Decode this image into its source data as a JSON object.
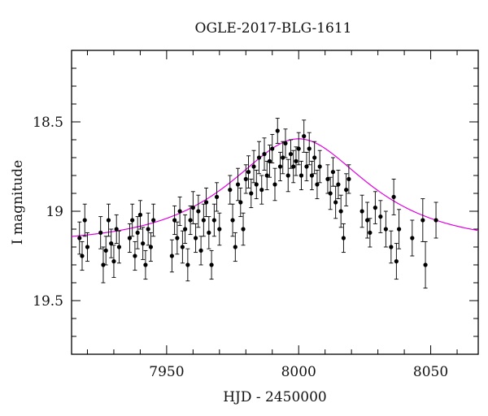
{
  "chart_data": {
    "type": "scatter",
    "title": "OGLE-2017-BLG-1611",
    "xlabel": "HJD - 2450000",
    "ylabel": "I magnitude",
    "xlim": [
      7914,
      8068
    ],
    "ylim": [
      18.1,
      19.8
    ],
    "y_inverted": true,
    "grid": false,
    "x_ticks": [
      7950,
      8000,
      8050
    ],
    "y_ticks": [
      18.5,
      19,
      19.5
    ],
    "x_tick_labels": [
      "7950",
      "8000",
      "8050"
    ],
    "y_tick_labels": [
      "18.5",
      "19",
      "19.5"
    ],
    "colors": {
      "data": "#000000",
      "model": "#e000e0"
    },
    "series": [
      {
        "type": "scatter_errorbars",
        "color": "#000000",
        "points": [
          [
            7917,
            19.15,
            0.09
          ],
          [
            7918,
            19.25,
            0.08
          ],
          [
            7919,
            19.05,
            0.09
          ],
          [
            7920,
            19.2,
            0.08
          ],
          [
            7925,
            19.12,
            0.09
          ],
          [
            7926,
            19.3,
            0.1
          ],
          [
            7927,
            19.22,
            0.08
          ],
          [
            7928,
            19.05,
            0.09
          ],
          [
            7929,
            19.18,
            0.08
          ],
          [
            7930,
            19.28,
            0.09
          ],
          [
            7931,
            19.1,
            0.08
          ],
          [
            7932,
            19.2,
            0.09
          ],
          [
            7936,
            19.15,
            0.08
          ],
          [
            7937,
            19.05,
            0.09
          ],
          [
            7938,
            19.25,
            0.08
          ],
          [
            7939,
            19.12,
            0.09
          ],
          [
            7940,
            19.02,
            0.08
          ],
          [
            7941,
            19.18,
            0.09
          ],
          [
            7942,
            19.3,
            0.08
          ],
          [
            7943,
            19.1,
            0.09
          ],
          [
            7944,
            19.2,
            0.08
          ],
          [
            7945,
            19.05,
            0.09
          ],
          [
            7952,
            19.25,
            0.09
          ],
          [
            7953,
            19.05,
            0.08
          ],
          [
            7954,
            19.15,
            0.09
          ],
          [
            7955,
            19.0,
            0.08
          ],
          [
            7956,
            19.2,
            0.09
          ],
          [
            7957,
            19.1,
            0.08
          ],
          [
            7958,
            19.3,
            0.09
          ],
          [
            7959,
            19.05,
            0.08
          ],
          [
            7960,
            18.98,
            0.09
          ],
          [
            7961,
            19.15,
            0.08
          ],
          [
            7962,
            19.0,
            0.09
          ],
          [
            7963,
            19.22,
            0.08
          ],
          [
            7964,
            19.05,
            0.09
          ],
          [
            7965,
            18.95,
            0.08
          ],
          [
            7966,
            19.12,
            0.09
          ],
          [
            7967,
            19.3,
            0.08
          ],
          [
            7968,
            19.05,
            0.09
          ],
          [
            7969,
            18.92,
            0.08
          ],
          [
            7970,
            19.1,
            0.09
          ],
          [
            7974,
            18.88,
            0.08
          ],
          [
            7975,
            19.05,
            0.09
          ],
          [
            7976,
            19.2,
            0.08
          ],
          [
            7977,
            18.85,
            0.09
          ],
          [
            7978,
            18.95,
            0.08
          ],
          [
            7979,
            19.1,
            0.09
          ],
          [
            7980,
            18.82,
            0.08
          ],
          [
            7981,
            18.78,
            0.09
          ],
          [
            7982,
            18.9,
            0.08
          ],
          [
            7983,
            18.75,
            0.09
          ],
          [
            7984,
            18.85,
            0.08
          ],
          [
            7985,
            18.7,
            0.09
          ],
          [
            7986,
            18.88,
            0.08
          ],
          [
            7987,
            18.68,
            0.09
          ],
          [
            7988,
            18.8,
            0.08
          ],
          [
            7989,
            18.72,
            0.09
          ],
          [
            7990,
            18.65,
            0.08
          ],
          [
            7991,
            18.85,
            0.09
          ],
          [
            7992,
            18.55,
            0.07
          ],
          [
            7993,
            18.75,
            0.08
          ],
          [
            7994,
            18.7,
            0.09
          ],
          [
            7995,
            18.62,
            0.08
          ],
          [
            7996,
            18.8,
            0.09
          ],
          [
            7997,
            18.68,
            0.08
          ],
          [
            7998,
            18.75,
            0.09
          ],
          [
            7999,
            18.72,
            0.08
          ],
          [
            8000,
            18.65,
            0.09
          ],
          [
            8001,
            18.8,
            0.08
          ],
          [
            8002,
            18.58,
            0.09
          ],
          [
            8003,
            18.75,
            0.08
          ],
          [
            8004,
            18.65,
            0.09
          ],
          [
            8005,
            18.8,
            0.08
          ],
          [
            8006,
            18.7,
            0.09
          ],
          [
            8007,
            18.85,
            0.08
          ],
          [
            8008,
            18.75,
            0.09
          ],
          [
            8011,
            18.82,
            0.08
          ],
          [
            8012,
            18.9,
            0.09
          ],
          [
            8013,
            18.78,
            0.08
          ],
          [
            8014,
            18.95,
            0.09
          ],
          [
            8015,
            18.85,
            0.08
          ],
          [
            8016,
            19.0,
            0.09
          ],
          [
            8017,
            19.15,
            0.08
          ],
          [
            8018,
            18.88,
            0.09
          ],
          [
            8019,
            18.82,
            0.08
          ],
          [
            8024,
            19.0,
            0.09
          ],
          [
            8026,
            19.05,
            0.1
          ],
          [
            8027,
            19.12,
            0.08
          ],
          [
            8029,
            18.98,
            0.09
          ],
          [
            8031,
            19.03,
            0.09
          ],
          [
            8033,
            19.1,
            0.1
          ],
          [
            8035,
            19.2,
            0.09
          ],
          [
            8036,
            18.92,
            0.1
          ],
          [
            8037,
            19.28,
            0.1
          ],
          [
            8038,
            19.1,
            0.11
          ],
          [
            8043,
            19.15,
            0.1
          ],
          [
            8047,
            19.05,
            0.12
          ],
          [
            8048,
            19.3,
            0.13
          ],
          [
            8052,
            19.05,
            0.1
          ]
        ]
      },
      {
        "type": "model_curve",
        "color": "#e000e0",
        "model": "point_lens",
        "baseline_mag": 19.18,
        "t0": 8000,
        "tE": 38,
        "u0": 0.68
      }
    ]
  }
}
